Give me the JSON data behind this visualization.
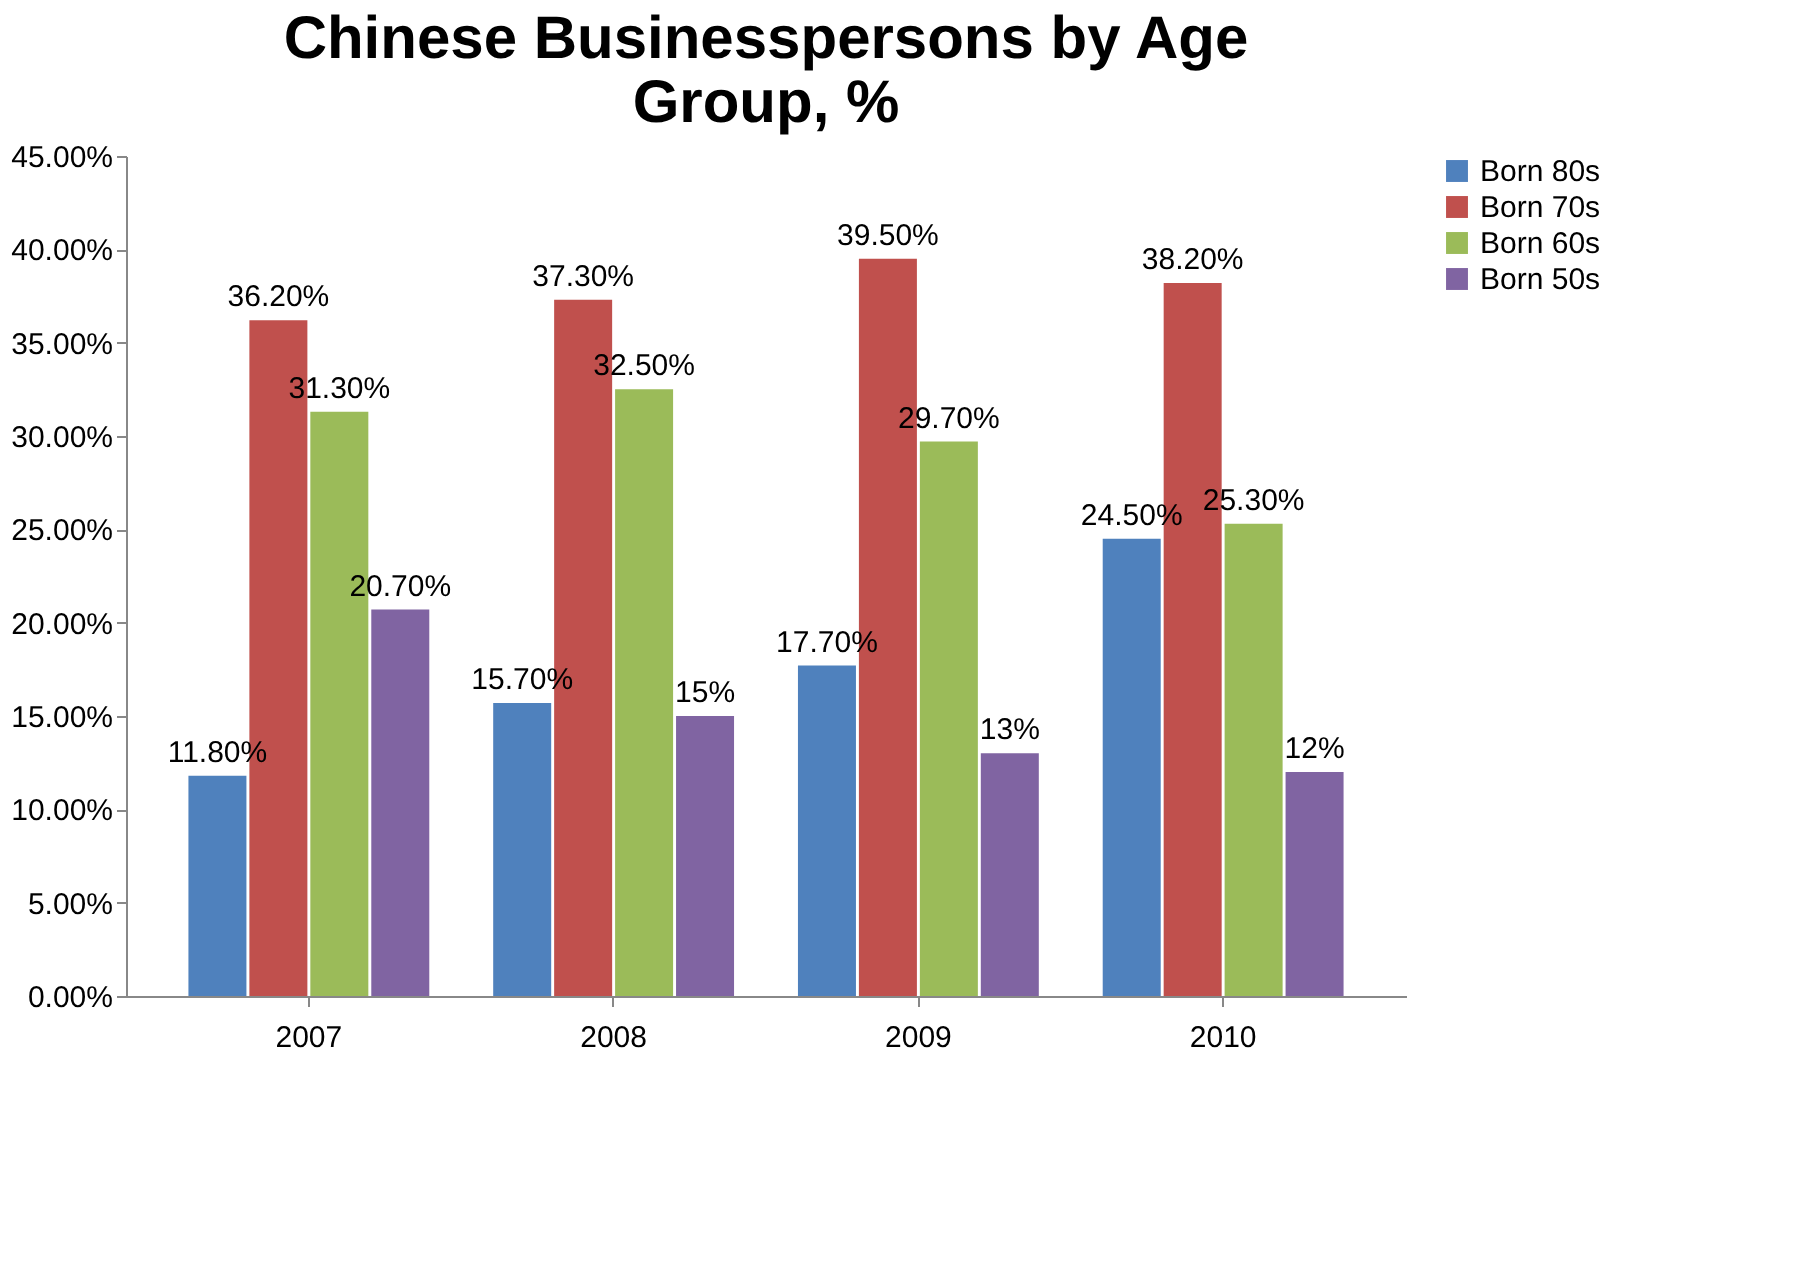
{
  "chart_data": {
    "type": "bar",
    "title": "Chinese Businesspersons by Age Group, %",
    "categories": [
      "2007",
      "2008",
      "2009",
      "2010"
    ],
    "series": [
      {
        "name": "Born  80s",
        "color": "#4f81bd",
        "values": [
          11.8,
          15.7,
          17.7,
          24.5
        ],
        "value_labels": [
          "11.80%",
          "15.70%",
          "17.70%",
          "24.50%"
        ]
      },
      {
        "name": "Born 70s",
        "color": "#c0504d",
        "values": [
          36.2,
          37.3,
          39.5,
          38.2
        ],
        "value_labels": [
          "36.20%",
          "37.30%",
          "39.50%",
          "38.20%"
        ]
      },
      {
        "name": "Born 60s",
        "color": "#9bbb59",
        "values": [
          31.3,
          32.5,
          29.7,
          25.3
        ],
        "value_labels": [
          "31.30%",
          "32.50%",
          "29.70%",
          "25.30%"
        ]
      },
      {
        "name": "Born 50s",
        "color": "#8064a2",
        "values": [
          20.7,
          15,
          13,
          12
        ],
        "value_labels": [
          "20.70%",
          "15%",
          "13%",
          "12%"
        ]
      }
    ],
    "ylim": [
      0,
      45
    ],
    "yticks": [
      {
        "value": 0,
        "label": "0.00%"
      },
      {
        "value": 5,
        "label": "5.00%"
      },
      {
        "value": 10,
        "label": "10.00%"
      },
      {
        "value": 15,
        "label": "15.00%"
      },
      {
        "value": 20,
        "label": "20.00%"
      },
      {
        "value": 25,
        "label": "25.00%"
      },
      {
        "value": 30,
        "label": "30.00%"
      },
      {
        "value": 35,
        "label": "35.00%"
      },
      {
        "value": 40,
        "label": "40.00%"
      },
      {
        "value": 45,
        "label": "45.00%"
      }
    ],
    "grid": false,
    "legend": "right"
  }
}
